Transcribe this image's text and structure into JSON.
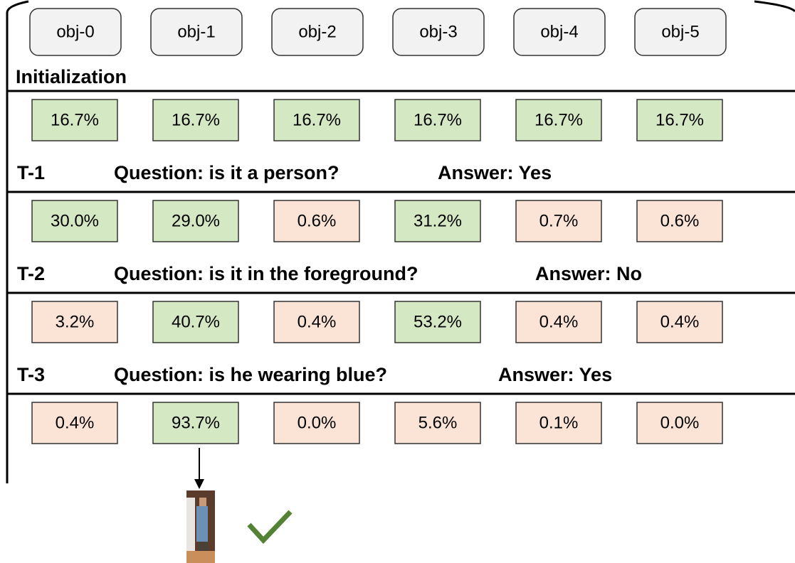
{
  "objects": [
    "obj-0",
    "obj-1",
    "obj-2",
    "obj-3",
    "obj-4",
    "obj-5"
  ],
  "initialization": {
    "label": "Initialization",
    "cells": [
      {
        "text": "16.7%",
        "color": "#d5e8c4"
      },
      {
        "text": "16.7%",
        "color": "#d5e8c4"
      },
      {
        "text": "16.7%",
        "color": "#d5e8c4"
      },
      {
        "text": "16.7%",
        "color": "#d5e8c4"
      },
      {
        "text": "16.7%",
        "color": "#d5e8c4"
      },
      {
        "text": "16.7%",
        "color": "#d5e8c4"
      }
    ]
  },
  "steps": [
    {
      "label": "T-1",
      "question": "Question: is it a person?",
      "answer": "Answer: Yes",
      "cells": [
        {
          "text": "30.0%",
          "color": "#d5e8c4"
        },
        {
          "text": "29.0%",
          "color": "#d5e8c4"
        },
        {
          "text": "0.6%",
          "color": "#fbe3d6"
        },
        {
          "text": "31.2%",
          "color": "#d5e8c4"
        },
        {
          "text": "0.7%",
          "color": "#fbe3d6"
        },
        {
          "text": "0.6%",
          "color": "#fbe3d6"
        }
      ]
    },
    {
      "label": "T-2",
      "question": "Question: is it in the foreground?",
      "answer": "Answer: No",
      "cells": [
        {
          "text": "3.2%",
          "color": "#fbe3d6"
        },
        {
          "text": "40.7%",
          "color": "#d5e8c4"
        },
        {
          "text": "0.4%",
          "color": "#fbe3d6"
        },
        {
          "text": "53.2%",
          "color": "#d5e8c4"
        },
        {
          "text": "0.4%",
          "color": "#fbe3d6"
        },
        {
          "text": "0.4%",
          "color": "#fbe3d6"
        }
      ]
    },
    {
      "label": "T-3",
      "question": "Question: is he wearing blue?",
      "answer": "Answer: Yes",
      "cells": [
        {
          "text": "0.4%",
          "color": "#fbe3d6"
        },
        {
          "text": "93.7%",
          "color": "#d5e8c4"
        },
        {
          "text": "0.0%",
          "color": "#fbe3d6"
        },
        {
          "text": "5.6%",
          "color": "#fbe3d6"
        },
        {
          "text": "0.1%",
          "color": "#fbe3d6"
        },
        {
          "text": "0.0%",
          "color": "#fbe3d6"
        }
      ]
    }
  ]
}
